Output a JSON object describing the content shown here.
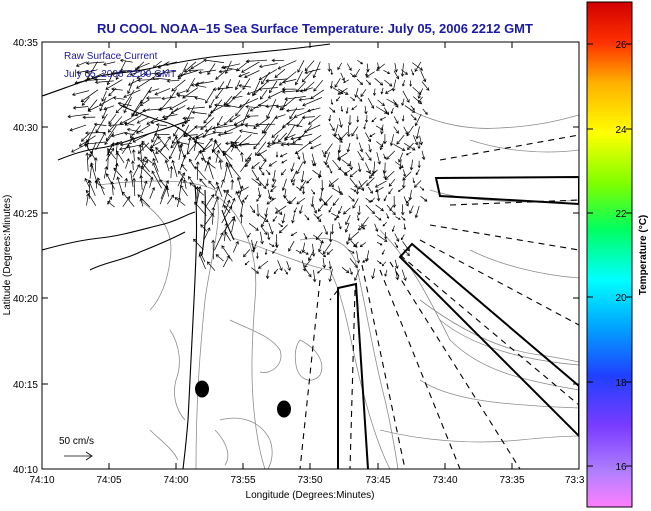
{
  "map": {
    "title": "RU COOL  NOAA–15  Sea Surface Temperature:  July 05, 2006 2212 GMT",
    "overlay_line1": "Raw Surface Current",
    "overlay_line2": "July 05, 2006 22:00 GMT",
    "scale_label": "50 cm/s",
    "xlabel": "Longitude (Degrees:Minutes)",
    "ylabel": "Latitude (Degrees:Minutes)",
    "x_ticks": [
      "74:10",
      "74:05",
      "74:00",
      "73:55",
      "73:50",
      "73:45",
      "73:40",
      "73:35",
      "73:3"
    ],
    "y_ticks": [
      "40:35",
      "40:30",
      "40:25",
      "40:20",
      "40:15",
      "40:10"
    ]
  },
  "colorbar": {
    "label": "Temperature (°C)",
    "ticks": [
      "26",
      "24",
      "22",
      "20",
      "18",
      "16"
    ]
  },
  "colors": {
    "title": "#1a1aa6",
    "coast": "#000000",
    "contours": "#8c8c8c"
  }
}
